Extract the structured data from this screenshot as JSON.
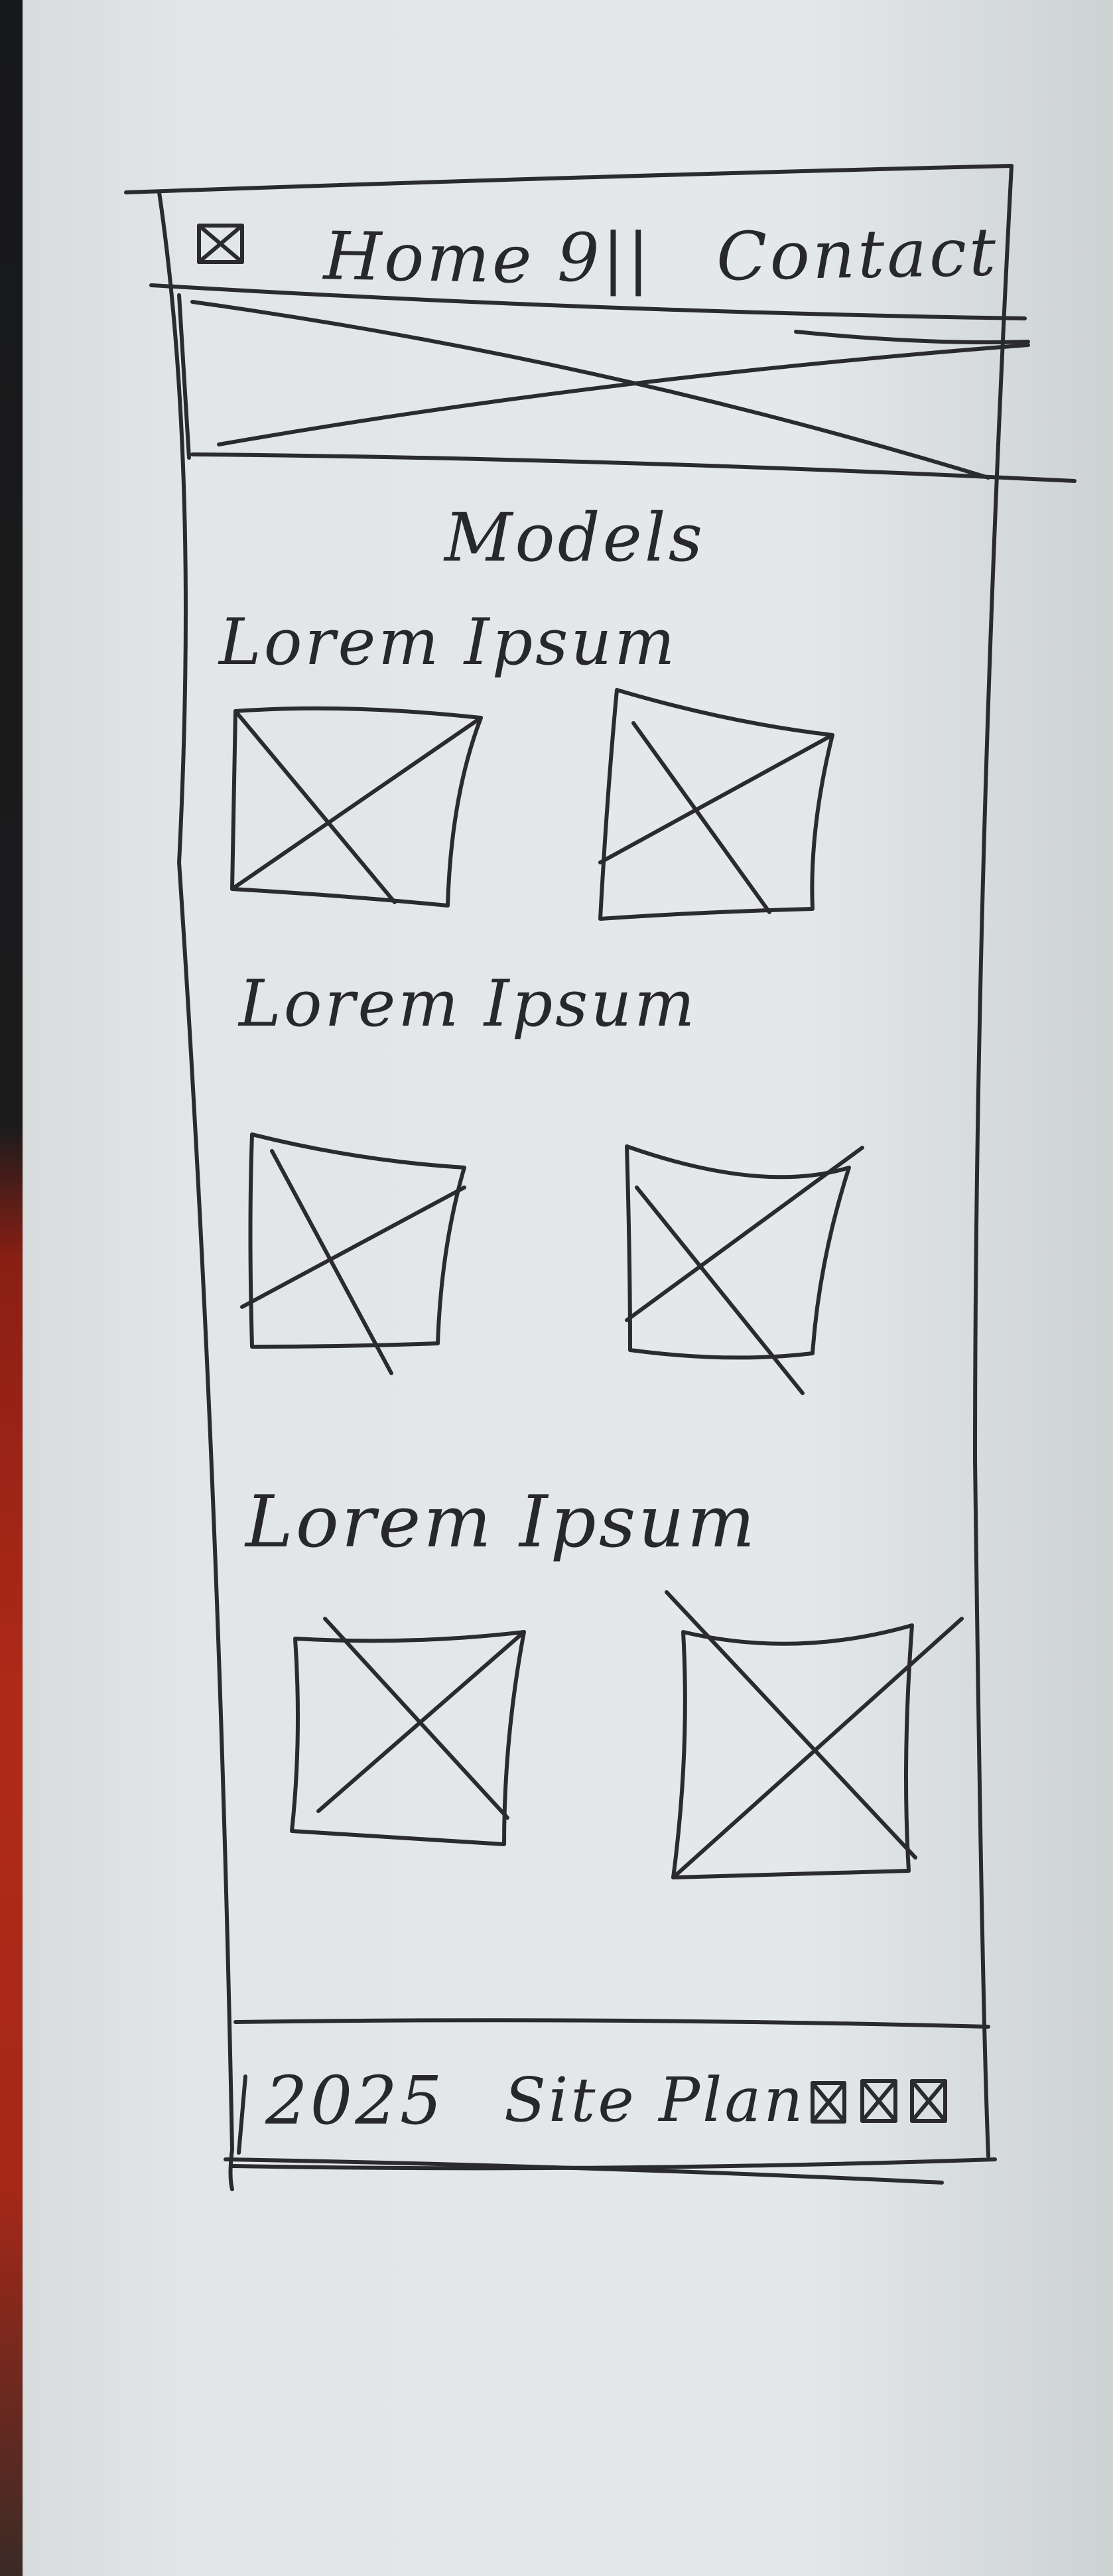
{
  "nav": {
    "logo_icon": "checkbox-logo-icon",
    "links": [
      "Home",
      "9||",
      "Contact"
    ]
  },
  "hero": {
    "placeholder_icon": "image-placeholder-icon"
  },
  "main": {
    "title": "Models",
    "sections": [
      {
        "heading": "Lorem Ipsum",
        "images": [
          "image-placeholder-icon",
          "image-placeholder-icon"
        ]
      },
      {
        "heading": "Lorem Ipsum",
        "images": [
          "image-placeholder-icon",
          "image-placeholder-icon"
        ]
      },
      {
        "heading": "Lorem Ipsum",
        "images": [
          "image-placeholder-icon",
          "image-placeholder-icon"
        ]
      }
    ]
  },
  "footer": {
    "year": "2025",
    "label": "Site Plan",
    "social_icons": [
      "checkbox-icon",
      "checkbox-icon",
      "checkbox-icon"
    ]
  }
}
